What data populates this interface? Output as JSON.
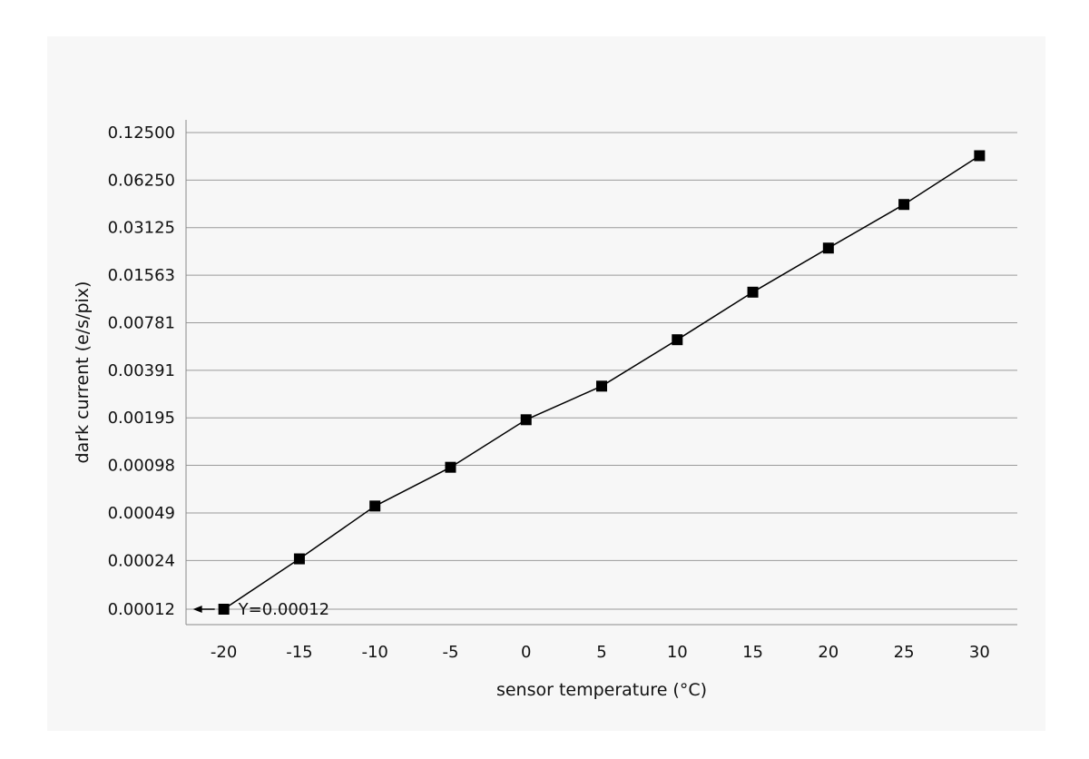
{
  "chart_data": {
    "type": "line",
    "title": "",
    "xlabel": "sensor temperature (°C)",
    "ylabel": "dark current  (e/s/pix)",
    "y_scale": "log2",
    "grid": "horizontal",
    "legend": "none",
    "xlim": [
      -22.5,
      32.5
    ],
    "x_ticks": [
      -20,
      -15,
      -10,
      -5,
      0,
      5,
      10,
      15,
      20,
      25,
      30
    ],
    "y_ticks": [
      {
        "value": 0.00012,
        "label": "0.00012"
      },
      {
        "value": 0.000244,
        "label": "0.00024"
      },
      {
        "value": 0.000488,
        "label": "0.00049"
      },
      {
        "value": 0.000977,
        "label": "0.00098"
      },
      {
        "value": 0.001953,
        "label": "0.00195"
      },
      {
        "value": 0.003906,
        "label": "0.00391"
      },
      {
        "value": 0.0078125,
        "label": "0.00781"
      },
      {
        "value": 0.015625,
        "label": "0.01563"
      },
      {
        "value": 0.03125,
        "label": "0.03125"
      },
      {
        "value": 0.0625,
        "label": "0.06250"
      },
      {
        "value": 0.125,
        "label": "0.12500"
      }
    ],
    "series": [
      {
        "marker": "square",
        "color": "#000000",
        "x": [
          -20,
          -15,
          -10,
          -5,
          0,
          5,
          10,
          15,
          20,
          25,
          30
        ],
        "y": [
          0.00012,
          0.00025,
          0.00054,
          0.00095,
          0.0019,
          0.0031,
          0.0061,
          0.0122,
          0.0232,
          0.0438,
          0.0892
        ]
      }
    ],
    "annotations": [
      {
        "text": "Y=0.00012",
        "x": -20,
        "y": 0.00012,
        "arrow": "left"
      }
    ]
  }
}
